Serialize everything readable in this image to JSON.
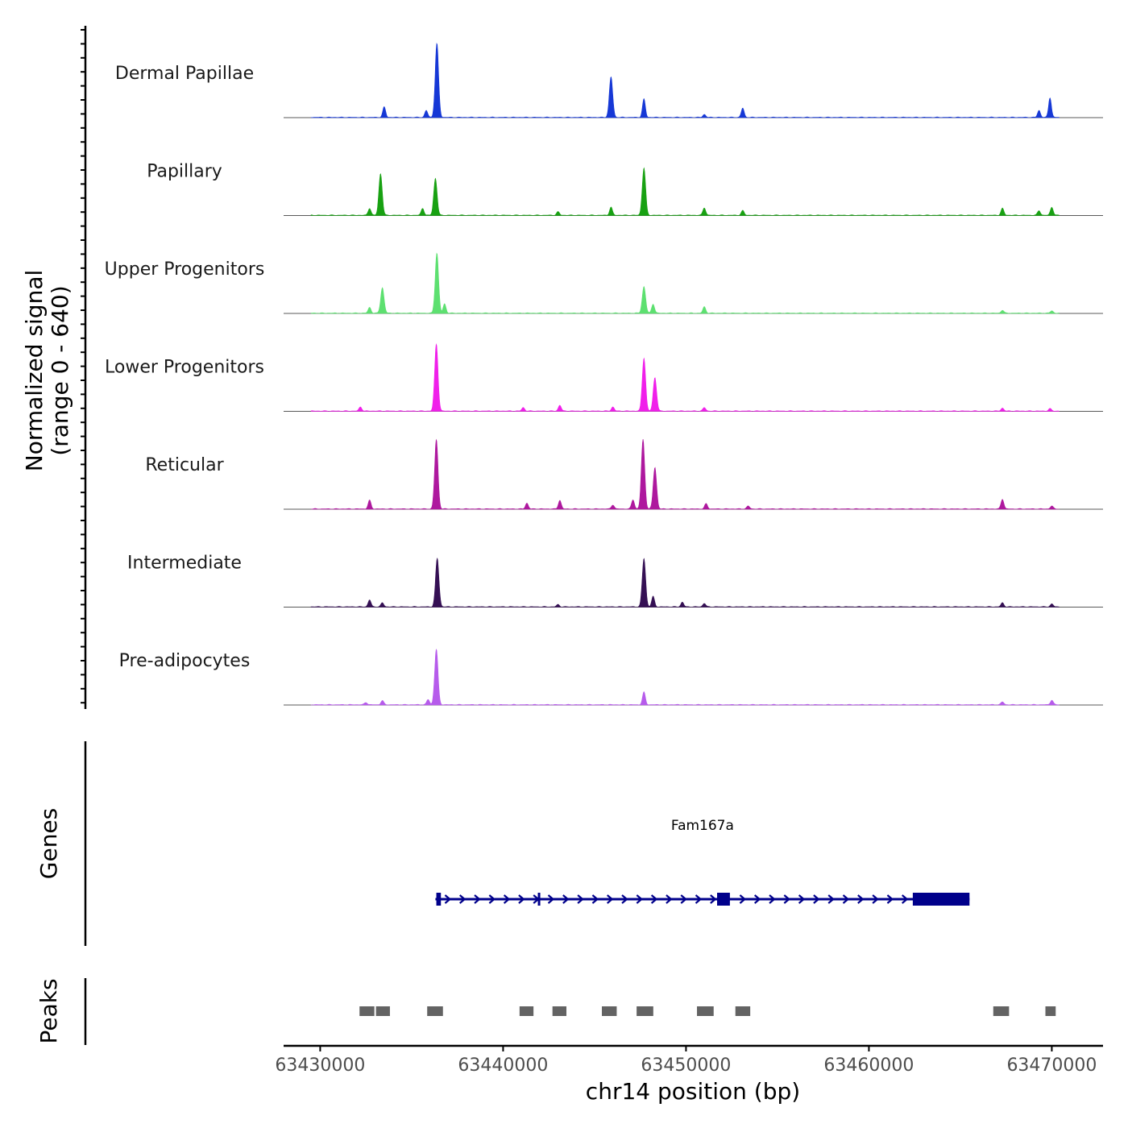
{
  "chart_data": {
    "type": "area",
    "title": "",
    "ylabel_line1": "Normalized signal",
    "ylabel_line2": "(range 0 - 640)",
    "y_range": [
      0,
      640
    ],
    "xlabel": "chr14 position (bp)",
    "xlim": [
      63428000,
      63472800
    ],
    "x_ticks": [
      63430000,
      63440000,
      63450000,
      63460000,
      63470000
    ],
    "x_tick_labels": [
      "63430000",
      "63440000",
      "63450000",
      "63460000",
      "63470000"
    ],
    "tracks": [
      {
        "name": "Dermal Papillae",
        "color": "#1638D6",
        "peaks": [
          [
            63433500,
            90
          ],
          [
            63436380,
            640
          ],
          [
            63445900,
            350
          ],
          [
            63447700,
            160
          ],
          [
            63453100,
            80
          ],
          [
            63469900,
            170
          ],
          [
            63469300,
            60
          ],
          [
            63451000,
            25
          ],
          [
            63435800,
            60
          ]
        ]
      },
      {
        "name": "Papillary",
        "color": "#18A112",
        "peaks": [
          [
            63433300,
            360
          ],
          [
            63436300,
            320
          ],
          [
            63432700,
            60
          ],
          [
            63435600,
            60
          ],
          [
            63445900,
            70
          ],
          [
            63447700,
            410
          ],
          [
            63451000,
            65
          ],
          [
            63453100,
            40
          ],
          [
            63467300,
            60
          ],
          [
            63470000,
            70
          ],
          [
            63469300,
            40
          ],
          [
            63443000,
            30
          ]
        ]
      },
      {
        "name": "Upper Progenitors",
        "color": "#5DE070",
        "peaks": [
          [
            63433400,
            220
          ],
          [
            63436380,
            520
          ],
          [
            63432700,
            50
          ],
          [
            63447700,
            230
          ],
          [
            63448200,
            80
          ],
          [
            63451000,
            55
          ],
          [
            63467300,
            25
          ],
          [
            63470000,
            20
          ],
          [
            63436800,
            80
          ]
        ]
      },
      {
        "name": "Lower Progenitors",
        "color": "#F01FEA",
        "peaks": [
          [
            63436350,
            580
          ],
          [
            63447700,
            460
          ],
          [
            63448300,
            290
          ],
          [
            63443100,
            50
          ],
          [
            63432200,
            35
          ],
          [
            63441100,
            30
          ],
          [
            63446000,
            35
          ],
          [
            63451000,
            30
          ],
          [
            63467300,
            25
          ],
          [
            63469900,
            20
          ]
        ]
      },
      {
        "name": "Reticular",
        "color": "#AE189E",
        "peaks": [
          [
            63436350,
            600
          ],
          [
            63447650,
            600
          ],
          [
            63448300,
            360
          ],
          [
            63443100,
            75
          ],
          [
            63432700,
            75
          ],
          [
            63441300,
            50
          ],
          [
            63446000,
            35
          ],
          [
            63447100,
            80
          ],
          [
            63451100,
            45
          ],
          [
            63467300,
            85
          ],
          [
            63470000,
            25
          ],
          [
            63453400,
            25
          ]
        ]
      },
      {
        "name": "Intermediate",
        "color": "#351054",
        "peaks": [
          [
            63436400,
            420
          ],
          [
            63447700,
            420
          ],
          [
            63432700,
            60
          ],
          [
            63433400,
            35
          ],
          [
            63448200,
            90
          ],
          [
            63451000,
            30
          ],
          [
            63467300,
            35
          ],
          [
            63470000,
            25
          ],
          [
            63443000,
            20
          ],
          [
            63449800,
            40
          ]
        ]
      },
      {
        "name": "Pre-adipocytes",
        "color": "#B65BEB",
        "peaks": [
          [
            63436350,
            480
          ],
          [
            63447700,
            110
          ],
          [
            63433400,
            35
          ],
          [
            63435900,
            45
          ],
          [
            63470000,
            40
          ],
          [
            63467300,
            25
          ],
          [
            63432500,
            20
          ]
        ]
      }
    ],
    "gene": {
      "name": "Fam167a",
      "color": "#00008B",
      "start": 63436300,
      "end": 63465500,
      "strand": "+",
      "utr_blocks": [
        [
          63436350,
          63436600
        ],
        [
          63441900,
          63442000
        ]
      ],
      "exon_blocks": [
        [
          63451700,
          63452400
        ],
        [
          63462400,
          63465500
        ]
      ]
    },
    "peak_regions": [
      [
        63432150,
        63433050
      ],
      [
        63433050,
        63433900
      ],
      [
        63435850,
        63436800
      ],
      [
        63440900,
        63441750
      ],
      [
        63442700,
        63443550
      ],
      [
        63445400,
        63446300
      ],
      [
        63447300,
        63448300
      ],
      [
        63450600,
        63451600
      ],
      [
        63452700,
        63453600
      ],
      [
        63466800,
        63467750
      ],
      [
        63469650,
        63470300
      ]
    ],
    "genes_label": "Genes",
    "peaks_label": "Peaks"
  }
}
